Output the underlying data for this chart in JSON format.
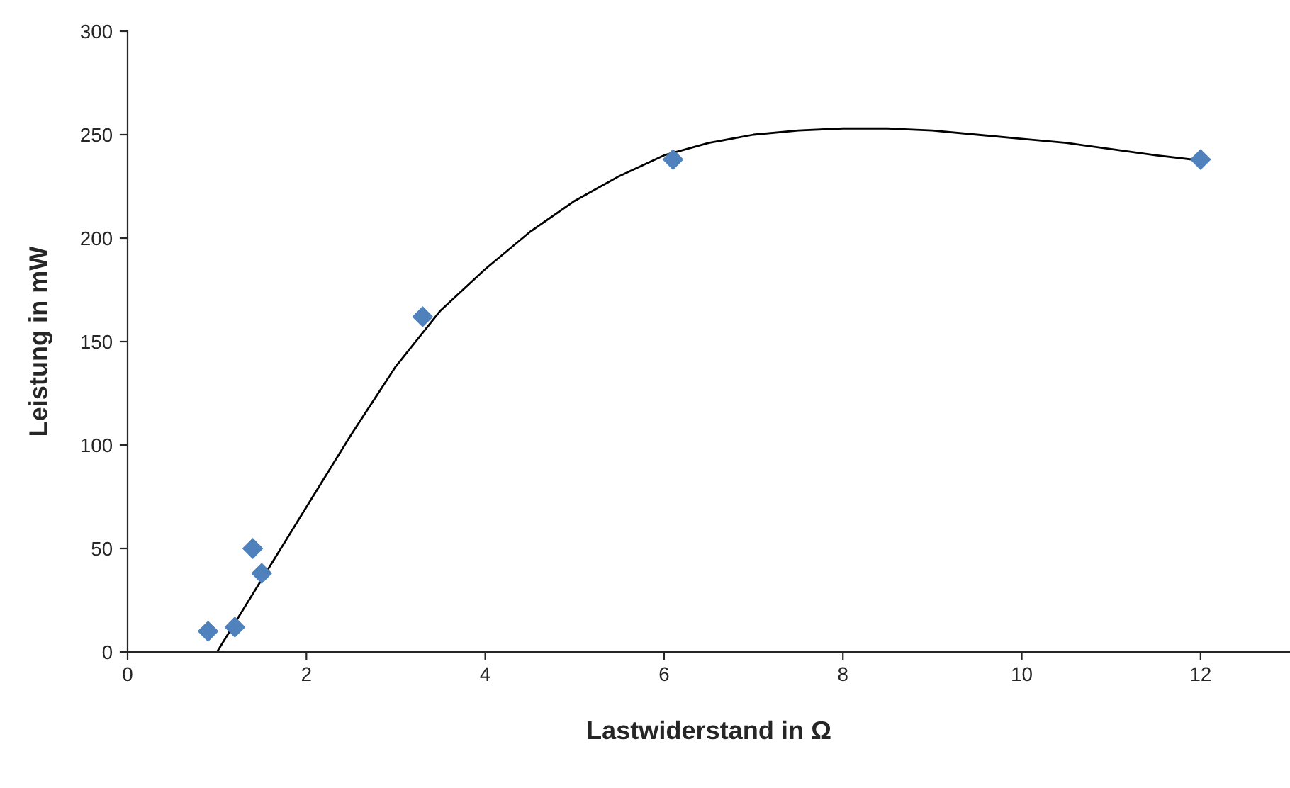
{
  "chart_data": {
    "type": "scatter",
    "xlabel": "Lastwiderstand in Ω",
    "ylabel": "Leistung in mW",
    "xlim": [
      0,
      13
    ],
    "xticks": [
      0,
      2,
      4,
      6,
      8,
      10,
      12
    ],
    "ylim": [
      0,
      300
    ],
    "yticks": [
      0,
      50,
      100,
      150,
      200,
      250,
      300
    ],
    "grid": false,
    "marker": "diamond",
    "series": [
      {
        "color": "#4f81bd",
        "x": [
          0.9,
          1.2,
          1.4,
          1.5,
          3.3,
          6.1,
          12
        ],
        "values": [
          10,
          12,
          50,
          38,
          162,
          238,
          238
        ]
      },
      {
        "type": "line",
        "color": "#000000",
        "line_style": "solid",
        "marker": "none",
        "x": [
          1.0,
          1.5,
          2,
          2.5,
          3,
          3.5,
          4,
          4.5,
          5,
          5.5,
          6,
          6.5,
          7,
          7.5,
          8,
          8.5,
          9,
          9.5,
          10,
          10.5,
          11,
          11.5,
          12
        ],
        "values": [
          0,
          35,
          70,
          105,
          138,
          165,
          185,
          203,
          218,
          230,
          240,
          246,
          250,
          252,
          253,
          253,
          252,
          250,
          248,
          246,
          243,
          240,
          237.5
        ]
      }
    ]
  }
}
